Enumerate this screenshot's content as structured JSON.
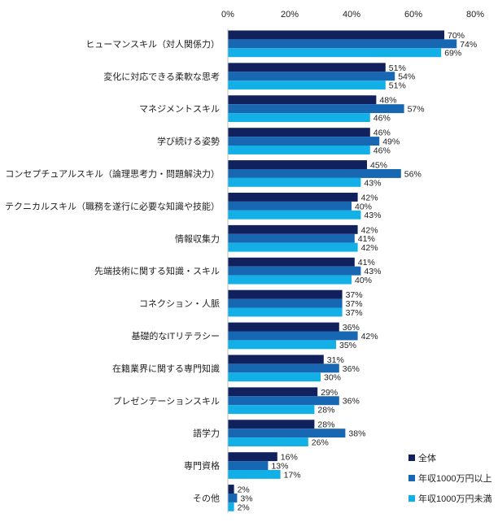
{
  "chart_data": {
    "type": "bar",
    "orientation": "horizontal",
    "categories": [
      "ヒューマンスキル（対人関係力）",
      "変化に対応できる柔軟な思考",
      "マネジメントスキル",
      "学び続ける姿勢",
      "コンセプチュアルスキル（論理思考力・問題解決力）",
      "テクニカルスキル（職務を遂行に必要な知識や技能）",
      "情報収集力",
      "先端技術に関する知識・スキル",
      "コネクション・人脈",
      "基礎的なITリテラシー",
      "在籍業界に関する専門知識",
      "プレゼンテーションスキル",
      "語学力",
      "専門資格",
      "その他"
    ],
    "series": [
      {
        "name": "全体",
        "color": "#10215e",
        "values": [
          70,
          51,
          48,
          46,
          45,
          42,
          42,
          41,
          37,
          36,
          31,
          29,
          28,
          16,
          2
        ]
      },
      {
        "name": "年収1000万円以上",
        "color": "#1767b3",
        "values": [
          74,
          54,
          57,
          49,
          56,
          40,
          41,
          43,
          37,
          42,
          36,
          36,
          38,
          13,
          3
        ]
      },
      {
        "name": "年収1000万円未満",
        "color": "#13b0e8",
        "values": [
          69,
          51,
          46,
          46,
          43,
          43,
          42,
          40,
          37,
          35,
          30,
          28,
          26,
          17,
          2
        ]
      }
    ],
    "xlim": [
      0,
      80
    ],
    "xticks": [
      "0%",
      "20%",
      "40%",
      "60%",
      "80%"
    ],
    "value_suffix": "%",
    "legend_position": "bottom-right",
    "grid": false
  }
}
